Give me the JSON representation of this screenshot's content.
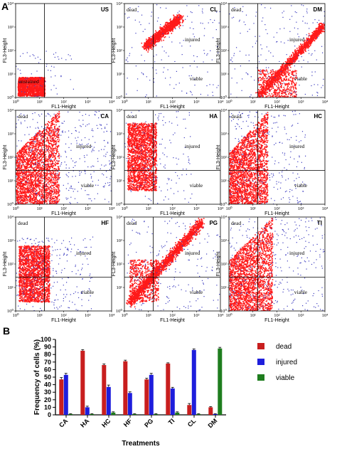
{
  "panel_labels": {
    "a": "A",
    "b": "B"
  },
  "flow": {
    "x_axis_title": "FL1-Height",
    "y_axis_title": "FL3-Height",
    "tick_labels": [
      "10⁰",
      "10¹",
      "10²",
      "10³",
      "10⁴"
    ],
    "quadrant_labels": {
      "dead": "dead",
      "injured": "injured",
      "viable": "viable",
      "unstained": "unstained"
    },
    "panels": [
      {
        "name": "US"
      },
      {
        "name": "CL"
      },
      {
        "name": "DM"
      },
      {
        "name": "CA"
      },
      {
        "name": "HA"
      },
      {
        "name": "HC"
      },
      {
        "name": "HF"
      },
      {
        "name": "PG"
      },
      {
        "name": "TI"
      }
    ],
    "colors": {
      "events": "#ff1a1a",
      "sparse_events": "#3b3bbf"
    }
  },
  "chart_data": {
    "type": "bar",
    "categories": [
      "CA",
      "HA",
      "HC",
      "HF",
      "PG",
      "TI",
      "CL",
      "DM"
    ],
    "series": [
      {
        "name": "dead",
        "color": "#c81e1e",
        "values": [
          47,
          85,
          66,
          71,
          47,
          68,
          13,
          10
        ]
      },
      {
        "name": "injured",
        "color": "#1e1edc",
        "values": [
          53,
          10,
          37,
          29,
          53,
          35,
          86,
          1
        ]
      },
      {
        "name": "viable",
        "color": "#1e7d1e",
        "values": [
          1,
          1,
          3,
          1,
          1,
          3,
          1,
          88
        ]
      }
    ],
    "errors": [
      [
        2.5,
        1.5,
        1.5,
        1.5,
        1.5,
        1,
        2,
        1
      ],
      [
        2,
        1.5,
        2.5,
        1.5,
        2,
        1.5,
        1.5,
        0.5
      ],
      [
        0.5,
        0.5,
        1,
        0.5,
        0.5,
        1,
        0.5,
        1.5
      ]
    ],
    "xlabel": "Treatments",
    "ylabel": "Frequency of cells (%)",
    "ylim": [
      0,
      100
    ],
    "yticks": [
      0,
      10,
      20,
      30,
      40,
      50,
      60,
      70,
      80,
      90,
      100
    ],
    "legend_position": "right"
  }
}
